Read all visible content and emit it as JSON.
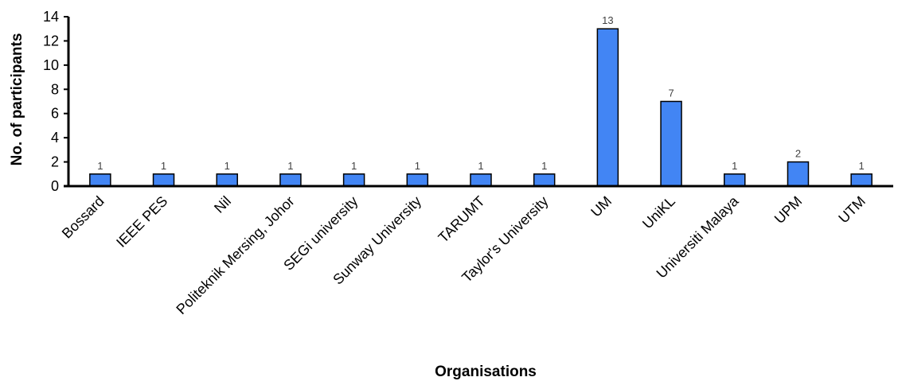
{
  "chart_data": {
    "type": "bar",
    "categories": [
      "Bossard",
      "IEEE PES",
      "Nil",
      "Politeknik Mersing, Johor",
      "SEGi university",
      "Sunway University",
      "TARUMT",
      "Taylor's University",
      "UM",
      "UniKL",
      "Universiti Malaya",
      "UPM",
      "UTM"
    ],
    "values": [
      1,
      1,
      1,
      1,
      1,
      1,
      1,
      1,
      13,
      7,
      1,
      2,
      1
    ],
    "data_labels": [
      "1",
      "1",
      "1",
      "1",
      "1",
      "1",
      "1",
      "1",
      "13",
      "7",
      "1",
      "2",
      "1"
    ],
    "xlabel": "Organisations",
    "ylabel": "No. of participants",
    "ylim": [
      0,
      14
    ],
    "yticks": [
      "0",
      "2",
      "4",
      "6",
      "8",
      "10",
      "12",
      "14"
    ],
    "grid": false,
    "legend": "none",
    "bar_color": "#4285f4",
    "bar_edge_color": "#000000"
  }
}
